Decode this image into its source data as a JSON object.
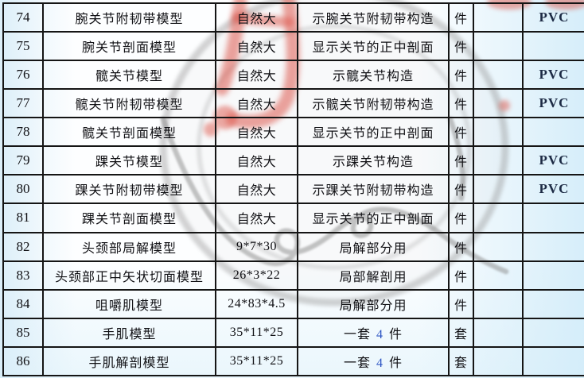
{
  "colors": {
    "table_border": "#151515",
    "text": "#101014",
    "material_text": "#1c2a44",
    "quantity_accent": "#2d55c3",
    "stamp_red": "#dd584c",
    "ring_gray": "#8f8f8f",
    "signature_gray": "#8a8a8a"
  },
  "watermark": {
    "ring_icon": "circular-stamp-outline",
    "script_icon": "handwritten-signature",
    "red_icon": "red-seal-character"
  },
  "table": {
    "rows": [
      {
        "no": "74",
        "name": "腕关节附韧带模型",
        "size": "自然大",
        "desc": "示腕关节附韧带构造",
        "unit": "件",
        "extra": "",
        "material": "PVC"
      },
      {
        "no": "75",
        "name": "腕关节剖面模型",
        "size": "自然大",
        "desc": "显示关节的正中剖面",
        "unit": "件",
        "extra": "",
        "material": ""
      },
      {
        "no": "76",
        "name": "髋关节模型",
        "size": "自然大",
        "desc": "示髋关节构造",
        "unit": "件",
        "extra": "",
        "material": "PVC"
      },
      {
        "no": "77",
        "name": "髋关节附韧带模型",
        "size": "自然大",
        "desc": "示髋关节附韧带构造",
        "unit": "件",
        "extra": "",
        "material": "PVC"
      },
      {
        "no": "78",
        "name": "髋关节剖面模型",
        "size": "自然大",
        "desc": "显示关节的正中剖面",
        "unit": "件",
        "extra": "",
        "material": ""
      },
      {
        "no": "79",
        "name": "踝关节模型",
        "size": "自然大",
        "desc": "示踝关节构造",
        "unit": "件",
        "extra": "",
        "material": "PVC"
      },
      {
        "no": "80",
        "name": "踝关节附韧带模型",
        "size": "自然大",
        "desc": "示踝关节附韧带构造",
        "unit": "件",
        "extra": "",
        "material": "PVC"
      },
      {
        "no": "81",
        "name": "踝关节剖面模型",
        "size": "自然大",
        "desc": "显示关节的正中剖面",
        "unit": "件",
        "extra": "",
        "material": ""
      },
      {
        "no": "82",
        "name": "头颈部局解模型",
        "size": "9*7*30",
        "desc": "局解部分用",
        "unit": "件",
        "extra": "",
        "material": ""
      },
      {
        "no": "83",
        "name": "头颈部正中矢状切面模型",
        "size": "26*3*22",
        "desc": "局部解剖用",
        "unit": "件",
        "extra": "",
        "material": ""
      },
      {
        "no": "84",
        "name": "咀嚼肌模型",
        "size": "24*83*4.5",
        "desc": "局解部分用",
        "unit": "件",
        "extra": "",
        "material": ""
      },
      {
        "no": "85",
        "name": "手肌模型",
        "size": "35*11*25",
        "desc": {
          "pre": "一套 ",
          "accent": "4",
          "post": " 件"
        },
        "unit": "套",
        "extra": "",
        "material": ""
      },
      {
        "no": "86",
        "name": "手肌解剖模型",
        "size": "35*11*25",
        "desc": {
          "pre": "一套 ",
          "accent": "4",
          "post": " 件"
        },
        "unit": "套",
        "extra": "",
        "material": ""
      }
    ]
  }
}
